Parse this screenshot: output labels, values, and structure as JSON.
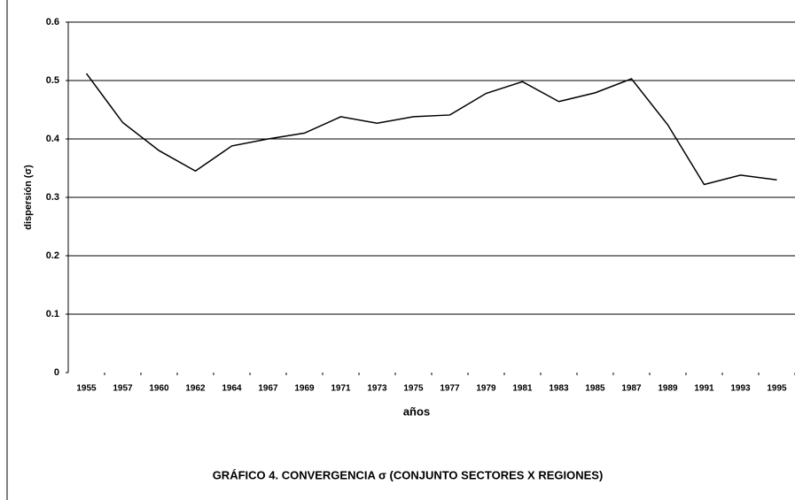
{
  "chart_data": {
    "type": "line",
    "title": "GRÁFICO 4. CONVERGENCIA σ (CONJUNTO SECTORES X REGIONES)",
    "x_label": "años",
    "y_label": "dispersión (σ)",
    "categories": [
      "1955",
      "1957",
      "1960",
      "1962",
      "1964",
      "1967",
      "1969",
      "1971",
      "1973",
      "1975",
      "1977",
      "1979",
      "1981",
      "1983",
      "1985",
      "1987",
      "1989",
      "1991",
      "1993",
      "1995"
    ],
    "values": [
      0.512,
      0.428,
      0.38,
      0.345,
      0.388,
      0.4,
      0.41,
      0.438,
      0.427,
      0.438,
      0.441,
      0.478,
      0.498,
      0.464,
      0.479,
      0.503,
      0.424,
      0.322,
      0.338,
      0.33
    ],
    "color": "#000000",
    "ylim": [
      0,
      0.6
    ],
    "yticks": [
      0,
      0.1,
      0.2,
      0.3,
      0.4,
      0.5,
      0.6
    ],
    "grid": true
  }
}
